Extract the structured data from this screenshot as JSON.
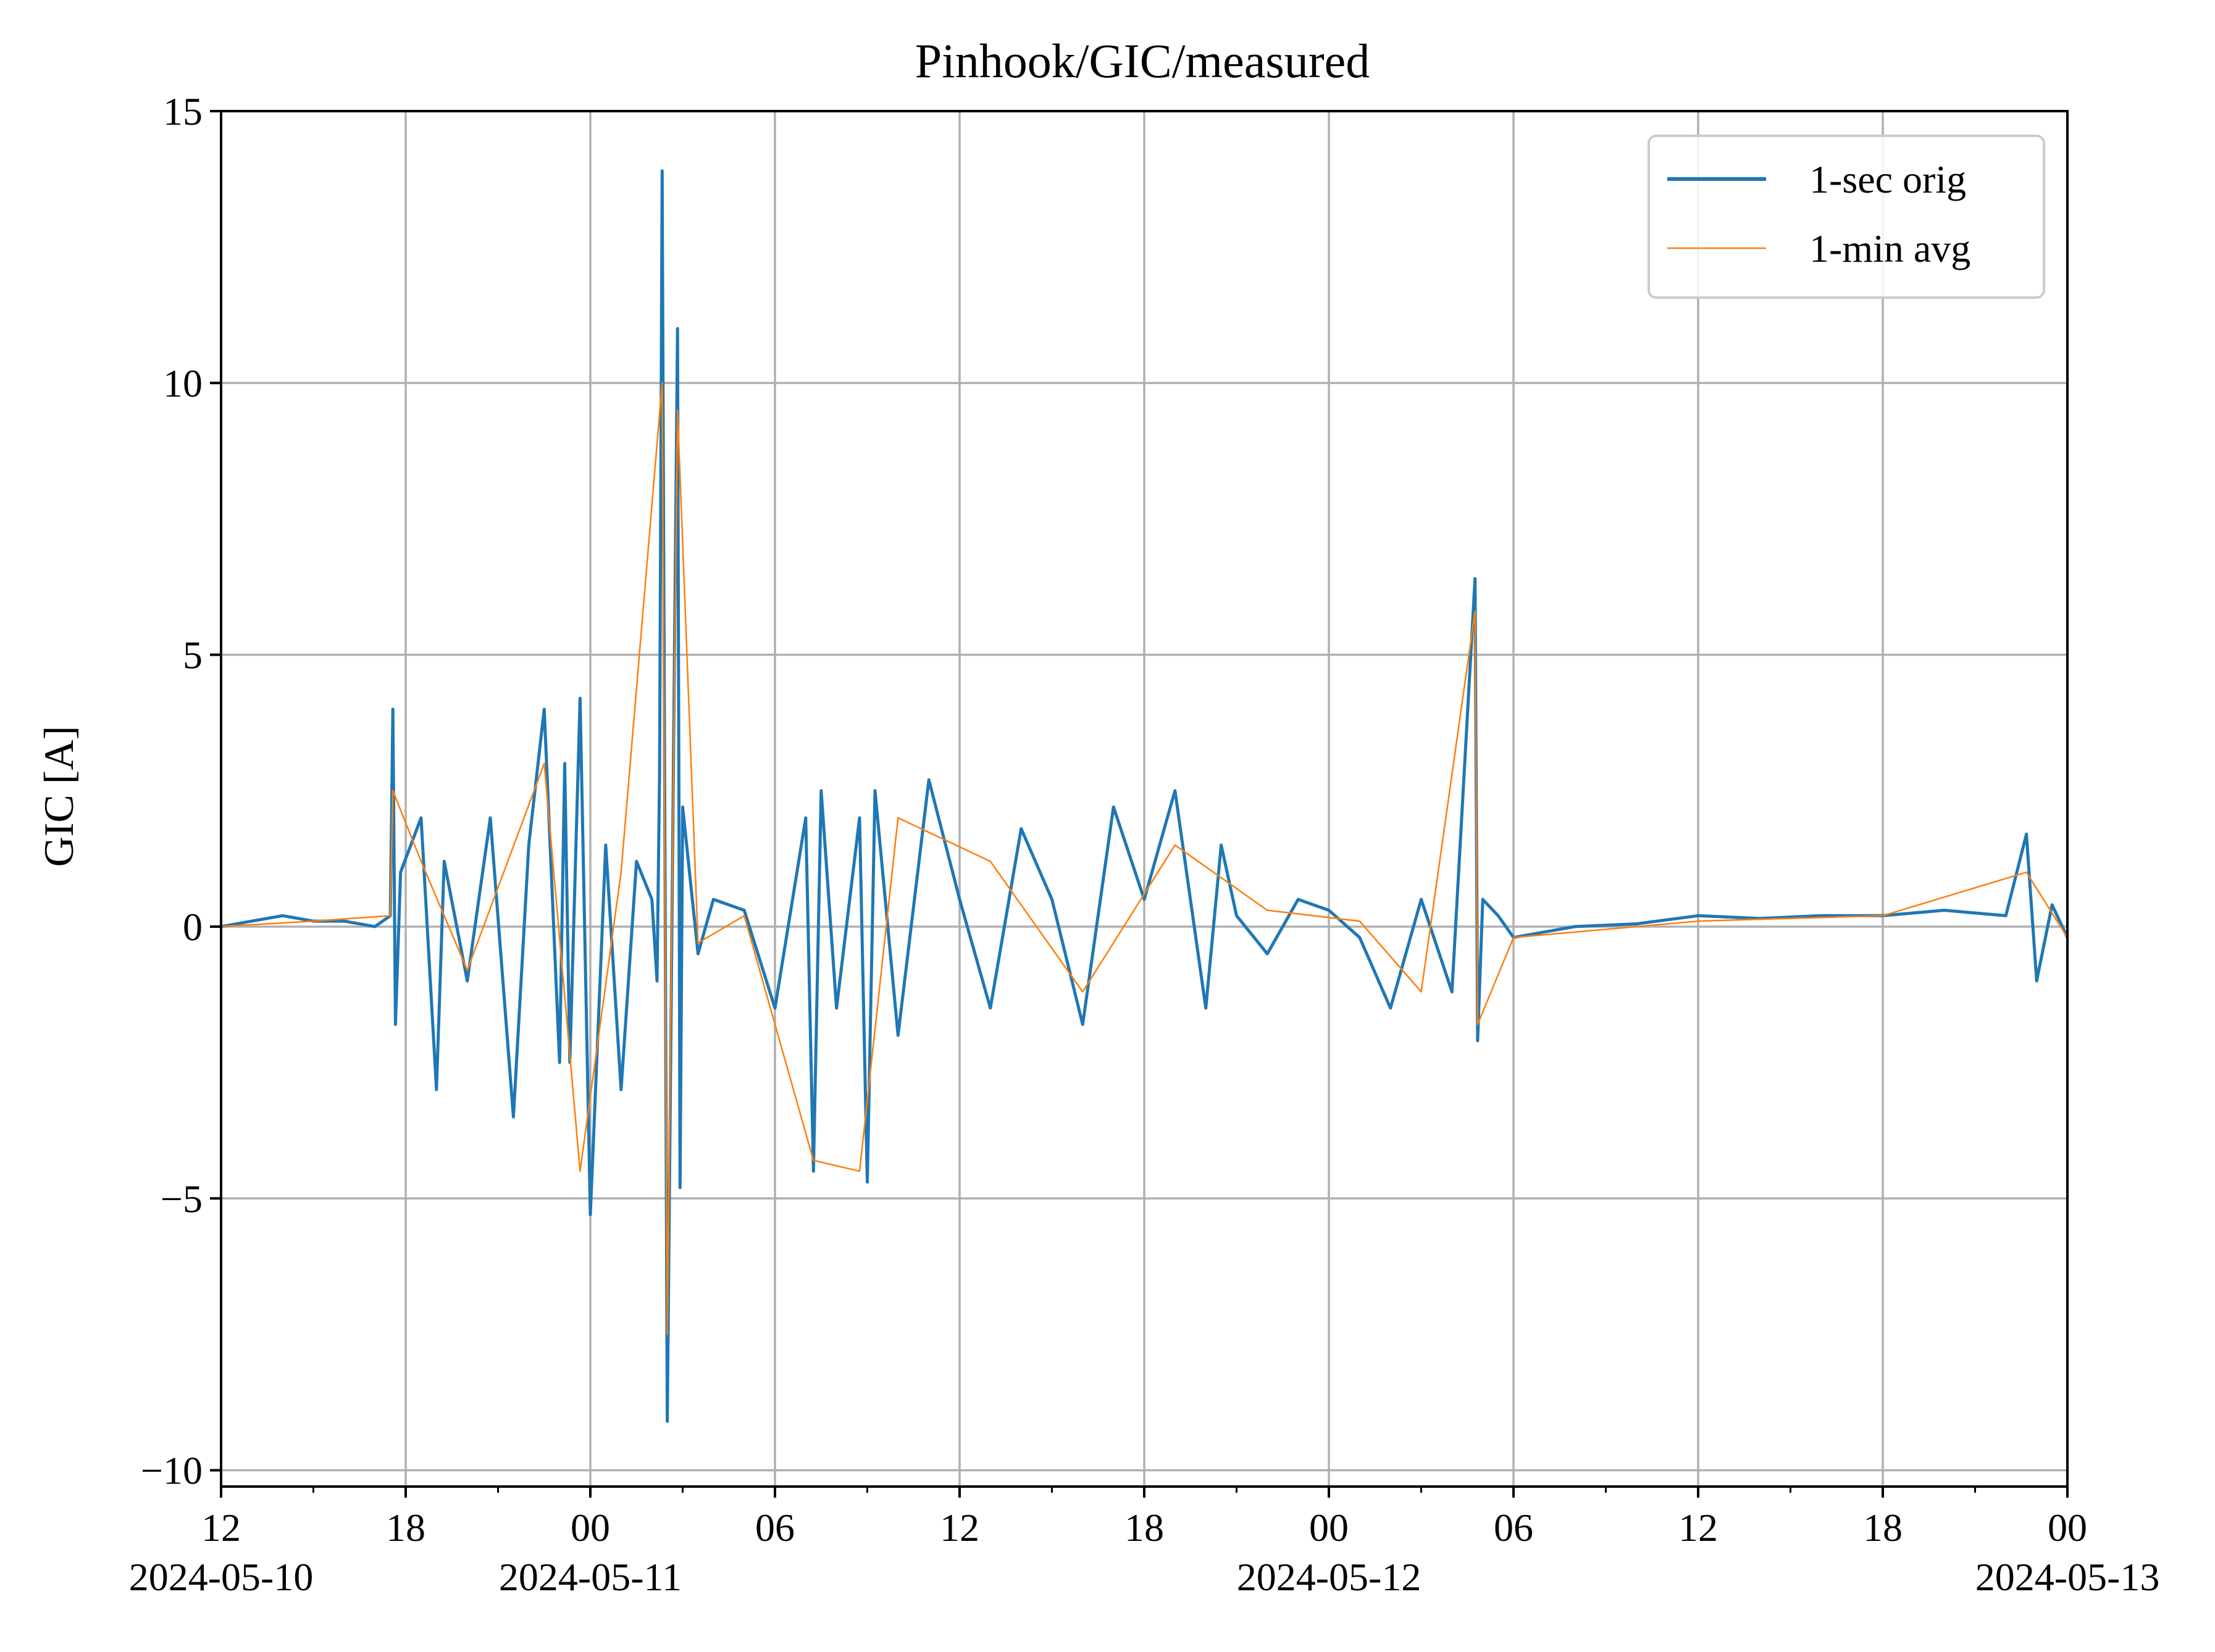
{
  "chart_data": {
    "type": "line",
    "title": "Pinhook/GIC/measured",
    "xlabel": "",
    "ylabel": "GIC [A]",
    "x_range": [
      "2024-05-10T12:00",
      "2024-05-13T00:00"
    ],
    "ylim": [
      -10.3,
      15
    ],
    "grid": true,
    "legend_placement": "top-right",
    "x_ticks": [
      {
        "t": "2024-05-10T12:00",
        "label": "12",
        "date_label": "2024-05-10"
      },
      {
        "t": "2024-05-10T18:00",
        "label": "18",
        "date_label": ""
      },
      {
        "t": "2024-05-11T00:00",
        "label": "00",
        "date_label": "2024-05-11"
      },
      {
        "t": "2024-05-11T06:00",
        "label": "06",
        "date_label": ""
      },
      {
        "t": "2024-05-11T12:00",
        "label": "12",
        "date_label": ""
      },
      {
        "t": "2024-05-11T18:00",
        "label": "18",
        "date_label": ""
      },
      {
        "t": "2024-05-12T00:00",
        "label": "00",
        "date_label": "2024-05-12"
      },
      {
        "t": "2024-05-12T06:00",
        "label": "06",
        "date_label": ""
      },
      {
        "t": "2024-05-12T12:00",
        "label": "12",
        "date_label": ""
      },
      {
        "t": "2024-05-12T18:00",
        "label": "18",
        "date_label": ""
      },
      {
        "t": "2024-05-13T00:00",
        "label": "00",
        "date_label": "2024-05-13"
      }
    ],
    "y_ticks": [
      {
        "value": 15,
        "label": "15"
      },
      {
        "value": 10,
        "label": "10"
      },
      {
        "value": 5,
        "label": "5"
      },
      {
        "value": 0,
        "label": "0"
      },
      {
        "value": -5,
        "label": "−5"
      },
      {
        "value": -10,
        "label": "−10"
      }
    ],
    "series": [
      {
        "name": "1-sec orig",
        "color": "#1f77b4",
        "x": [
          "2024-05-10T12:00",
          "2024-05-10T13:00",
          "2024-05-10T14:00",
          "2024-05-10T15:00",
          "2024-05-10T16:00",
          "2024-05-10T17:00",
          "2024-05-10T17:30",
          "2024-05-10T17:35",
          "2024-05-10T17:40",
          "2024-05-10T17:50",
          "2024-05-10T18:30",
          "2024-05-10T19:00",
          "2024-05-10T19:15",
          "2024-05-10T20:00",
          "2024-05-10T20:45",
          "2024-05-10T21:30",
          "2024-05-10T22:00",
          "2024-05-10T22:30",
          "2024-05-10T23:00",
          "2024-05-10T23:10",
          "2024-05-10T23:20",
          "2024-05-10T23:40",
          "2024-05-11T00:00",
          "2024-05-11T00:30",
          "2024-05-11T01:00",
          "2024-05-11T01:30",
          "2024-05-11T02:00",
          "2024-05-11T02:10",
          "2024-05-11T02:15",
          "2024-05-11T02:20",
          "2024-05-11T02:30",
          "2024-05-11T02:50",
          "2024-05-11T02:55",
          "2024-05-11T03:00",
          "2024-05-11T03:30",
          "2024-05-11T04:00",
          "2024-05-11T05:00",
          "2024-05-11T06:00",
          "2024-05-11T07:00",
          "2024-05-11T07:15",
          "2024-05-11T07:30",
          "2024-05-11T08:00",
          "2024-05-11T08:45",
          "2024-05-11T09:00",
          "2024-05-11T09:15",
          "2024-05-11T10:00",
          "2024-05-11T11:00",
          "2024-05-11T12:00",
          "2024-05-11T13:00",
          "2024-05-11T14:00",
          "2024-05-11T15:00",
          "2024-05-11T16:00",
          "2024-05-11T17:00",
          "2024-05-11T18:00",
          "2024-05-11T19:00",
          "2024-05-11T20:00",
          "2024-05-11T20:30",
          "2024-05-11T21:00",
          "2024-05-11T22:00",
          "2024-05-11T23:00",
          "2024-05-12T00:00",
          "2024-05-12T01:00",
          "2024-05-12T02:00",
          "2024-05-12T03:00",
          "2024-05-12T04:00",
          "2024-05-12T04:45",
          "2024-05-12T04:50",
          "2024-05-12T05:00",
          "2024-05-12T05:30",
          "2024-05-12T06:00",
          "2024-05-12T08:00",
          "2024-05-12T10:00",
          "2024-05-12T12:00",
          "2024-05-12T14:00",
          "2024-05-12T16:00",
          "2024-05-12T18:00",
          "2024-05-12T20:00",
          "2024-05-12T22:00",
          "2024-05-12T22:40",
          "2024-05-12T23:00",
          "2024-05-12T23:30",
          "2024-05-13T00:00"
        ],
        "y": [
          0.0,
          0.1,
          0.2,
          0.1,
          0.1,
          0.0,
          0.2,
          4.0,
          -1.8,
          1.0,
          2.0,
          -3.0,
          1.2,
          -1.0,
          2.0,
          -3.5,
          1.5,
          4.0,
          -2.5,
          3.0,
          -2.5,
          4.2,
          -5.3,
          1.5,
          -3.0,
          1.2,
          0.5,
          -1.0,
          2.8,
          13.9,
          -9.1,
          11.0,
          -4.8,
          2.2,
          -0.5,
          0.5,
          0.3,
          -1.5,
          2.0,
          -4.5,
          2.5,
          -1.5,
          2.0,
          -4.7,
          2.5,
          -2.0,
          2.7,
          0.5,
          -1.5,
          1.8,
          0.5,
          -1.8,
          2.2,
          0.5,
          2.5,
          -1.5,
          1.5,
          0.2,
          -0.5,
          0.5,
          0.3,
          -0.2,
          -1.5,
          0.5,
          -1.2,
          6.4,
          -2.1,
          0.5,
          0.2,
          -0.2,
          0.0,
          0.05,
          0.2,
          0.15,
          0.2,
          0.2,
          0.3,
          0.2,
          1.7,
          -1.0,
          0.4,
          -0.2
        ]
      },
      {
        "name": "1-min avg",
        "color": "#ff7f0e",
        "x": [
          "2024-05-10T12:00",
          "2024-05-10T15:00",
          "2024-05-10T17:30",
          "2024-05-10T17:35",
          "2024-05-10T18:30",
          "2024-05-10T20:00",
          "2024-05-10T22:30",
          "2024-05-10T23:40",
          "2024-05-11T01:00",
          "2024-05-11T02:20",
          "2024-05-11T02:30",
          "2024-05-11T02:50",
          "2024-05-11T03:30",
          "2024-05-11T05:00",
          "2024-05-11T07:15",
          "2024-05-11T08:45",
          "2024-05-11T10:00",
          "2024-05-11T13:00",
          "2024-05-11T16:00",
          "2024-05-11T19:00",
          "2024-05-11T22:00",
          "2024-05-12T01:00",
          "2024-05-12T03:00",
          "2024-05-12T04:45",
          "2024-05-12T04:50",
          "2024-05-12T06:00",
          "2024-05-12T12:00",
          "2024-05-12T18:00",
          "2024-05-12T22:40",
          "2024-05-13T00:00"
        ],
        "y": [
          0.0,
          0.1,
          0.2,
          2.5,
          1.2,
          -0.8,
          3.0,
          -4.5,
          1.0,
          10.0,
          -7.5,
          9.5,
          -0.3,
          0.2,
          -4.3,
          -4.5,
          2.0,
          1.2,
          -1.2,
          1.5,
          0.3,
          0.1,
          -1.2,
          5.8,
          -1.8,
          -0.2,
          0.1,
          0.2,
          1.0,
          -0.2
        ]
      }
    ]
  }
}
